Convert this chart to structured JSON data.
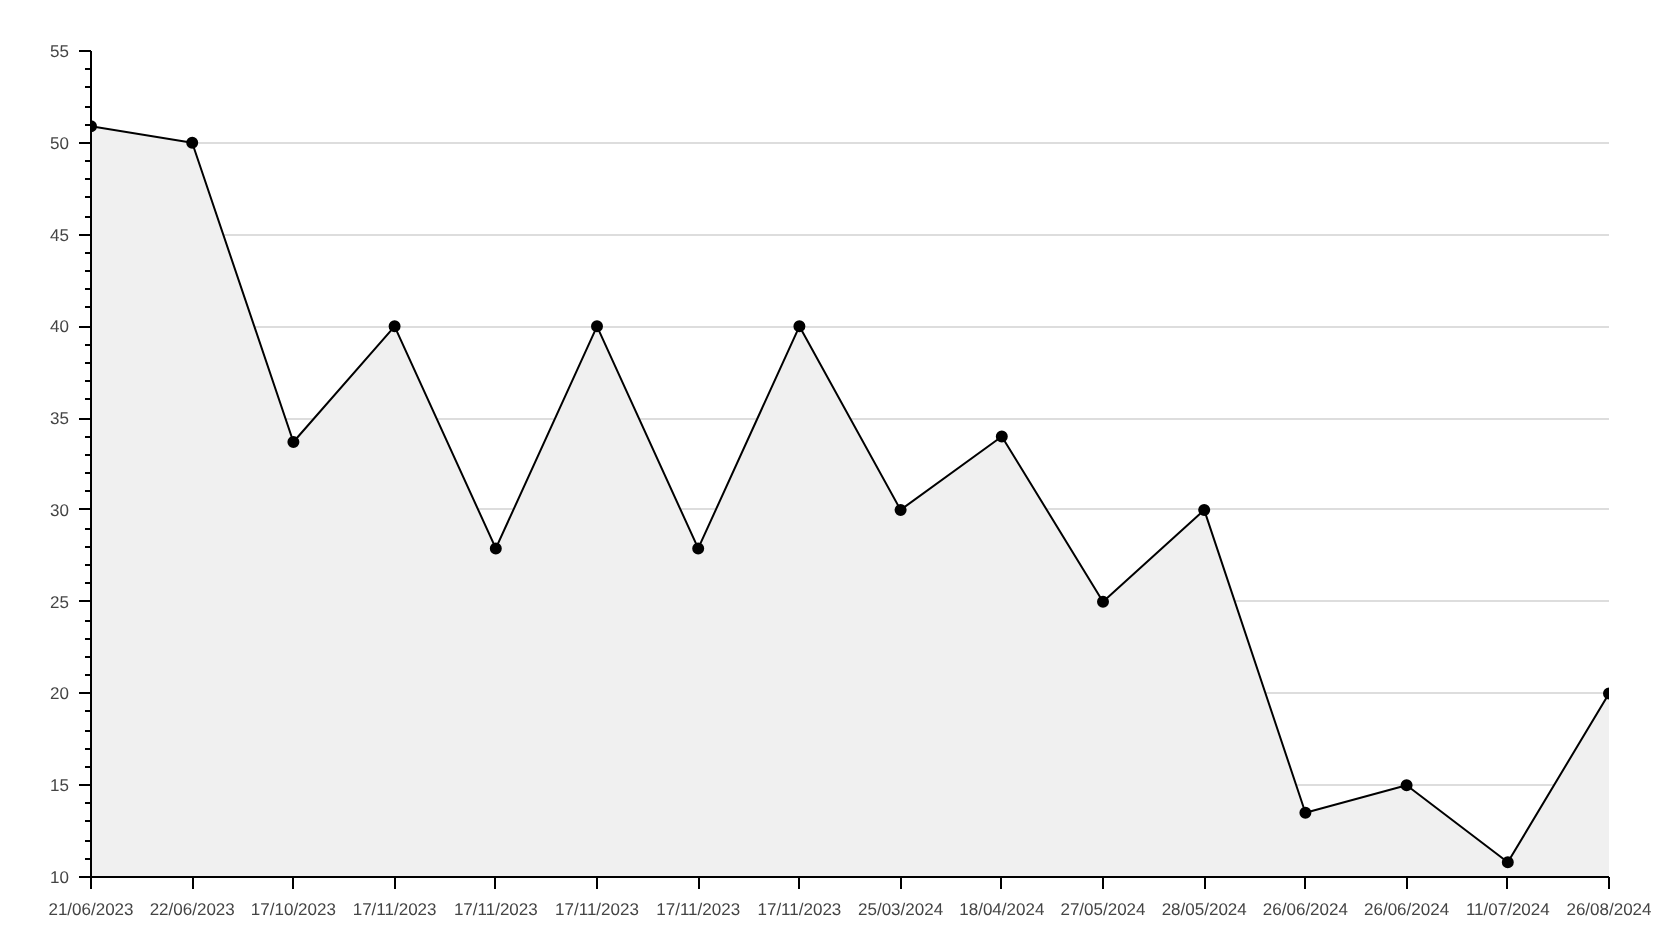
{
  "chart_data": {
    "type": "area",
    "categories": [
      "21/06/2023",
      "22/06/2023",
      "17/10/2023",
      "17/11/2023",
      "17/11/2023",
      "17/11/2023",
      "17/11/2023",
      "17/11/2023",
      "25/03/2024",
      "18/04/2024",
      "27/05/2024",
      "28/05/2024",
      "26/06/2024",
      "26/06/2024",
      "11/07/2024",
      "26/08/2024"
    ],
    "series": [
      {
        "color": "#000000",
        "values": [
          50.9,
          50,
          33.7,
          40,
          27.9,
          40,
          27.9,
          40,
          30,
          34,
          25,
          30,
          13.5,
          15,
          10.8,
          20
        ]
      }
    ],
    "ylim": [
      10,
      55
    ],
    "yticks": [
      10,
      15,
      20,
      25,
      30,
      35,
      40,
      45,
      50,
      55
    ],
    "grid": "y",
    "marker": "circle",
    "line_style": "solid"
  }
}
